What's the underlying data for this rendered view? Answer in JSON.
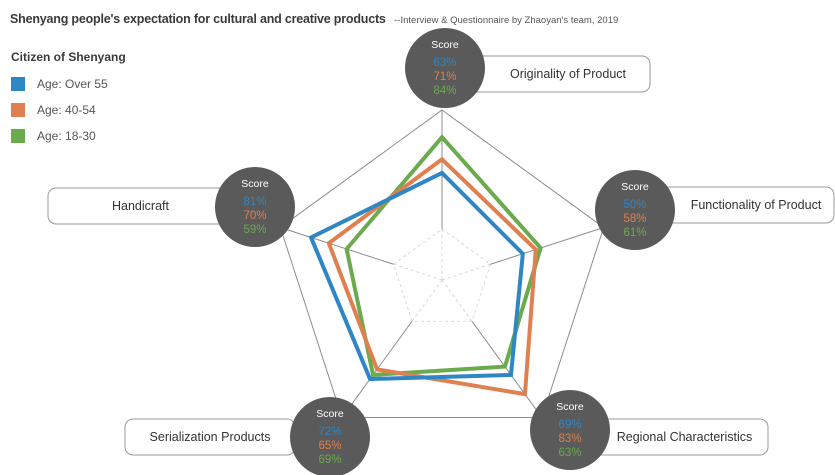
{
  "title": {
    "main": "Shenyang people's expectation for cultural and creative products",
    "sub": "--Interview & Questionnaire by Zhaoyan's team, 2019"
  },
  "legend": {
    "title": "Citizen of Shenyang",
    "items": [
      {
        "label": "Age: Over 55",
        "color": "#2f86c4"
      },
      {
        "label": "Age: 40-54",
        "color": "#e07f50"
      },
      {
        "label": "Age: 18-30",
        "color": "#6aab4e"
      }
    ]
  },
  "score_label": "Score",
  "chart_data": {
    "type": "radar",
    "categories": [
      "Originality of Product",
      "Functionality of Product",
      "Regional Characteristics",
      "Serialization Products",
      "Handicraft"
    ],
    "range": [
      0,
      100
    ],
    "series": [
      {
        "name": "Age: Over 55",
        "color": "#2f86c4",
        "values": [
          63,
          50,
          69,
          72,
          81
        ],
        "labels": [
          "63%",
          "50%",
          "69%",
          "72%",
          "81%"
        ]
      },
      {
        "name": "Age: 40-54",
        "color": "#e07f50",
        "values": [
          71,
          58,
          83,
          65,
          70
        ],
        "labels": [
          "71%",
          "58%",
          "83%",
          "65%",
          "70%"
        ]
      },
      {
        "name": "Age: 18-30",
        "color": "#6aab4e",
        "values": [
          84,
          61,
          63,
          69,
          59
        ],
        "labels": [
          "84%",
          "61%",
          "63%",
          "69%",
          "59%"
        ]
      }
    ]
  }
}
